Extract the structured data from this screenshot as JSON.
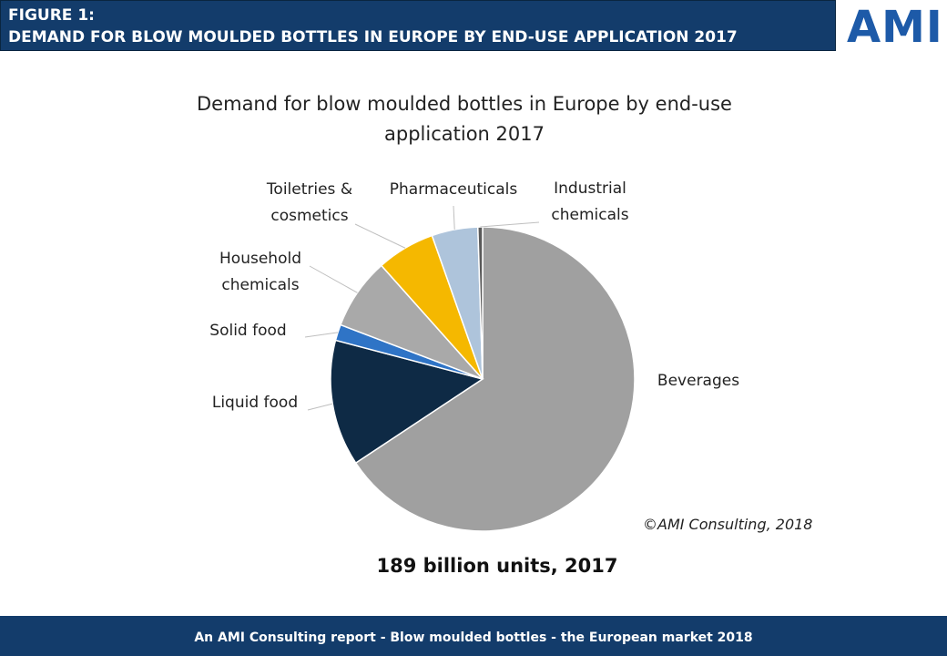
{
  "header": {
    "figure": "FIGURE 1:",
    "title": "DEMAND FOR BLOW MOULDED BOTTLES IN EUROPE BY END-USE APPLICATION 2017",
    "logo": "AMI"
  },
  "footer": "An AMI Consulting report - Blow moulded bottles - the European market  2018",
  "chart_data": {
    "type": "pie",
    "title": "Demand for blow moulded bottles in Europe by end-use application 2017",
    "categories": [
      "Beverages",
      "Liquid food",
      "Solid food",
      "Household chemicals",
      "Toiletries & cosmetics",
      "Pharmaceuticals",
      "Industrial chemicals"
    ],
    "values": [
      65.7,
      13.4,
      1.7,
      7.6,
      6.2,
      4.9,
      0.5
    ],
    "colors": [
      "#a0a0a0",
      "#0e2a45",
      "#2f74c6",
      "#a9a9a9",
      "#f5b800",
      "#aec4db",
      "#5a5a5a"
    ],
    "source": "©AMI Consulting, 2018",
    "total": "189 billion units, 2017"
  }
}
